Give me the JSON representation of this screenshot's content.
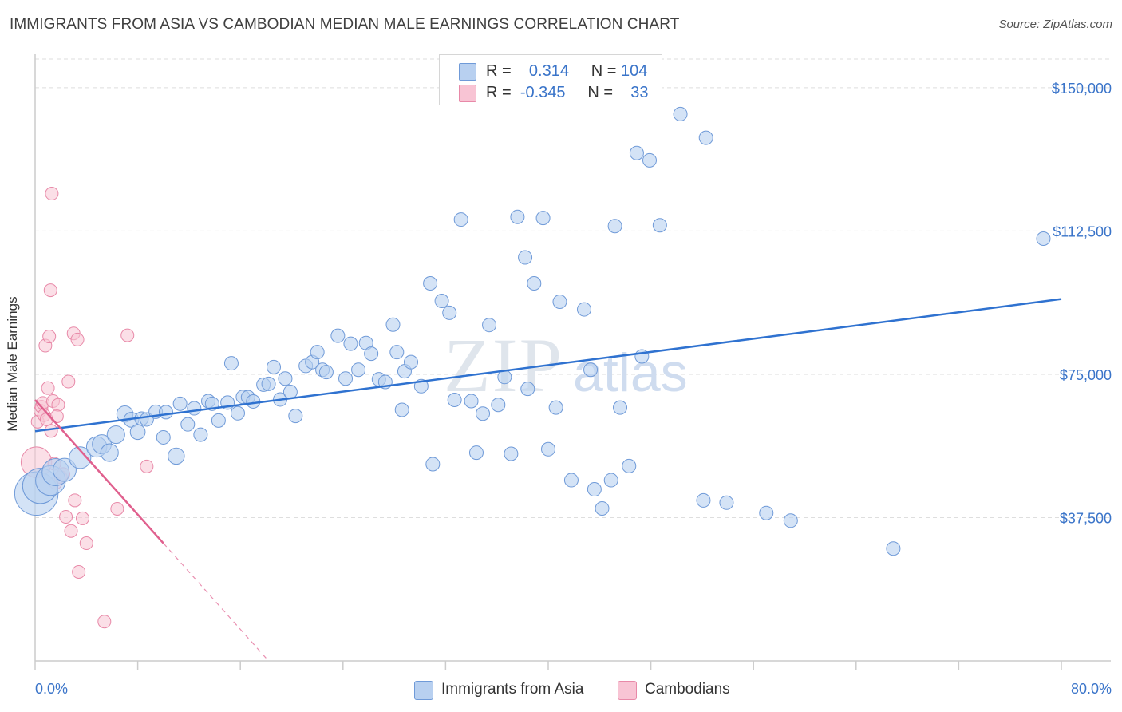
{
  "title": "IMMIGRANTS FROM ASIA VS CAMBODIAN MEDIAN MALE EARNINGS CORRELATION CHART",
  "source": "Source: ZipAtlas.com",
  "watermark": {
    "zip": "ZIP",
    "atlas": "atlas"
  },
  "legend": {
    "rows": [
      {
        "r_label": "R =",
        "r_value": "0.314",
        "n_label": "N =",
        "n_value": "104"
      },
      {
        "r_label": "R =",
        "r_value": "-0.345",
        "n_label": "N =",
        "n_value": "33"
      }
    ]
  },
  "chart_data": {
    "type": "scatter",
    "title": "IMMIGRANTS FROM ASIA VS CAMBODIAN MEDIAN MALE EARNINGS CORRELATION CHART",
    "xlabel": "",
    "ylabel": "Median Male Earnings",
    "xlim": [
      0,
      80
    ],
    "ylim": [
      0,
      157500
    ],
    "x_tick_labels": [
      "0.0%",
      "80.0%"
    ],
    "y_ticks": [
      37500,
      75000,
      112500,
      150000
    ],
    "y_tick_labels": [
      "$37,500",
      "$75,000",
      "$112,500",
      "$150,000"
    ],
    "grid": true,
    "legend_position": "top-center",
    "colors": {
      "asia_fill": "#b8d0f0",
      "asia_stroke": "#6f9ad8",
      "asia_line": "#2f72d0",
      "camb_fill": "#f8c4d4",
      "camb_stroke": "#e889a8",
      "camb_line": "#e0608e",
      "axis": "#cccccc",
      "grid": "#dedede",
      "tick_text": "#3a74c9"
    },
    "series": [
      {
        "name": "Immigrants from Asia",
        "r": 0.314,
        "n": 104,
        "trend": {
          "x": [
            0,
            80
          ],
          "y": [
            60100,
            94700
          ]
        },
        "points": [
          [
            0.1,
            43800,
            3.2
          ],
          [
            0.4,
            45800,
            2.6
          ],
          [
            1.2,
            47200,
            2.2
          ],
          [
            1.6,
            49400,
            2.0
          ],
          [
            2.3,
            50000,
            1.7
          ],
          [
            3.5,
            53200,
            1.6
          ],
          [
            4.8,
            56000,
            1.5
          ],
          [
            5.2,
            56700,
            1.4
          ],
          [
            5.8,
            54500,
            1.3
          ],
          [
            6.3,
            59200,
            1.3
          ],
          [
            7.0,
            64600,
            1.2
          ],
          [
            7.5,
            63100,
            1.1
          ],
          [
            8.0,
            59900,
            1.1
          ],
          [
            8.3,
            63400,
            1.0
          ],
          [
            8.7,
            63200,
            1.0
          ],
          [
            9.4,
            65200,
            1.0
          ],
          [
            10.0,
            58500,
            1.0
          ],
          [
            10.2,
            65100,
            1.0
          ],
          [
            11.0,
            53600,
            1.2
          ],
          [
            11.3,
            67300,
            1.0
          ],
          [
            11.9,
            61900,
            1.0
          ],
          [
            12.4,
            66100,
            1.0
          ],
          [
            12.9,
            59200,
            1.0
          ],
          [
            13.5,
            68000,
            1.0
          ],
          [
            13.8,
            67300,
            1.0
          ],
          [
            14.3,
            62900,
            1.0
          ],
          [
            15.0,
            67600,
            1.0
          ],
          [
            15.3,
            77900,
            1.0
          ],
          [
            15.8,
            64800,
            1.0
          ],
          [
            16.2,
            69100,
            1.0
          ],
          [
            16.6,
            69000,
            1.0
          ],
          [
            17.0,
            67900,
            1.0
          ],
          [
            17.8,
            72300,
            1.0
          ],
          [
            18.2,
            72500,
            1.0
          ],
          [
            18.6,
            76900,
            1.0
          ],
          [
            19.1,
            68400,
            1.0
          ],
          [
            19.5,
            73900,
            1.0
          ],
          [
            19.9,
            70400,
            1.0
          ],
          [
            20.3,
            64100,
            1.0
          ],
          [
            21.1,
            77200,
            1.0
          ],
          [
            21.6,
            78200,
            1.0
          ],
          [
            22.0,
            80800,
            1.0
          ],
          [
            22.4,
            76200,
            1.0
          ],
          [
            22.7,
            75600,
            1.0
          ],
          [
            23.6,
            85100,
            1.0
          ],
          [
            24.2,
            73900,
            1.0
          ],
          [
            24.6,
            83000,
            1.0
          ],
          [
            25.2,
            76200,
            1.0
          ],
          [
            25.8,
            83200,
            1.0
          ],
          [
            26.2,
            80400,
            1.0
          ],
          [
            26.8,
            73700,
            1.0
          ],
          [
            27.3,
            73000,
            1.0
          ],
          [
            27.9,
            88000,
            1.0
          ],
          [
            28.2,
            80800,
            1.0
          ],
          [
            28.8,
            75800,
            1.0
          ],
          [
            29.3,
            78200,
            1.0
          ],
          [
            28.6,
            65700,
            1.0
          ],
          [
            30.1,
            71900,
            1.0
          ],
          [
            30.8,
            98800,
            1.0
          ],
          [
            31.0,
            51500,
            1.0
          ],
          [
            31.7,
            94200,
            1.0
          ],
          [
            32.3,
            91100,
            1.0
          ],
          [
            32.7,
            68300,
            1.0
          ],
          [
            33.2,
            115500,
            1.0
          ],
          [
            34.0,
            68000,
            1.0
          ],
          [
            34.4,
            54500,
            1.0
          ],
          [
            34.9,
            64700,
            1.0
          ],
          [
            35.4,
            87900,
            1.0
          ],
          [
            36.1,
            67000,
            1.0
          ],
          [
            36.6,
            74300,
            1.0
          ],
          [
            37.1,
            54200,
            1.0
          ],
          [
            37.6,
            116200,
            1.0
          ],
          [
            38.2,
            105600,
            1.0
          ],
          [
            38.4,
            71200,
            1.0
          ],
          [
            38.9,
            98800,
            1.0
          ],
          [
            39.6,
            115900,
            1.0
          ],
          [
            40.0,
            55400,
            1.0
          ],
          [
            40.6,
            66300,
            1.0
          ],
          [
            40.9,
            94000,
            1.0
          ],
          [
            41.8,
            47300,
            1.0
          ],
          [
            42.8,
            92000,
            1.0
          ],
          [
            43.3,
            76200,
            1.0
          ],
          [
            43.6,
            44900,
            1.0
          ],
          [
            44.2,
            39900,
            1.0
          ],
          [
            44.9,
            47300,
            1.0
          ],
          [
            45.2,
            113800,
            1.0
          ],
          [
            45.6,
            66300,
            1.0
          ],
          [
            46.3,
            51000,
            1.0
          ],
          [
            46.9,
            132900,
            1.0
          ],
          [
            47.3,
            79700,
            1.0
          ],
          [
            47.9,
            131000,
            1.0
          ],
          [
            48.7,
            114000,
            1.0
          ],
          [
            50.3,
            143100,
            1.0
          ],
          [
            52.3,
            136900,
            1.0
          ],
          [
            52.1,
            42000,
            1.0
          ],
          [
            53.9,
            41400,
            1.0
          ],
          [
            57.0,
            38700,
            1.0
          ],
          [
            58.9,
            36700,
            1.0
          ],
          [
            66.9,
            29400,
            1.0
          ],
          [
            78.6,
            110500,
            1.0
          ]
        ]
      },
      {
        "name": "Cambodians",
        "r": -0.345,
        "n": 33,
        "trend": {
          "x": [
            0,
            10
          ],
          "y": [
            68300,
            30800
          ]
        },
        "trend_dashed": {
          "x": [
            10,
            18.2
          ],
          "y": [
            30800,
            0
          ]
        },
        "points": [
          [
            0.1,
            52000,
            2.4
          ],
          [
            0.2,
            62600,
            1.0
          ],
          [
            0.4,
            65500,
            1.0
          ],
          [
            0.5,
            66500,
            1.0
          ],
          [
            0.6,
            67500,
            1.0
          ],
          [
            0.7,
            64300,
            1.0
          ],
          [
            0.8,
            82500,
            1.0
          ],
          [
            0.9,
            63200,
            1.0
          ],
          [
            1.0,
            71400,
            1.0
          ],
          [
            1.1,
            84900,
            1.0
          ],
          [
            1.2,
            97000,
            1.0
          ],
          [
            1.25,
            60200,
            1.0
          ],
          [
            1.3,
            122300,
            1.0
          ],
          [
            1.4,
            68000,
            1.0
          ],
          [
            1.5,
            51600,
            1.0
          ],
          [
            1.6,
            46600,
            1.0
          ],
          [
            1.8,
            67000,
            1.0
          ],
          [
            2.0,
            48100,
            1.0
          ],
          [
            2.4,
            37700,
            1.0
          ],
          [
            2.6,
            73100,
            1.0
          ],
          [
            2.8,
            34000,
            1.0
          ],
          [
            3.0,
            85700,
            1.0
          ],
          [
            3.1,
            42000,
            1.0
          ],
          [
            3.3,
            84100,
            1.0
          ],
          [
            3.4,
            23300,
            1.0
          ],
          [
            3.7,
            37300,
            1.0
          ],
          [
            4.0,
            30800,
            1.0
          ],
          [
            5.4,
            10300,
            1.0
          ],
          [
            6.4,
            39800,
            1.0
          ],
          [
            7.2,
            85200,
            1.0
          ],
          [
            8.7,
            50900,
            1.0
          ],
          [
            2.2,
            48900,
            1.0
          ],
          [
            1.7,
            64000,
            1.0
          ]
        ]
      }
    ]
  },
  "bottom_legend": [
    {
      "label": "Immigrants from Asia"
    },
    {
      "label": "Cambodians"
    }
  ]
}
